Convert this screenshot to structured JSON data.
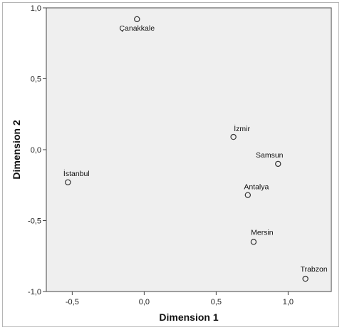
{
  "chart_data": {
    "type": "scatter",
    "xlabel": "Dimension 1",
    "ylabel": "Dimension 2",
    "xlim": [
      -0.68,
      1.3
    ],
    "ylim": [
      -1.0,
      1.0
    ],
    "xticks": [
      -0.5,
      0.0,
      0.5,
      1.0
    ],
    "yticks": [
      -1.0,
      -0.5,
      0.0,
      0.5,
      1.0
    ],
    "xtick_labels": [
      "-0,5",
      "0,0",
      "0,5",
      "1,0"
    ],
    "ytick_labels": [
      "-1,0",
      "-0,5",
      "0,0",
      "0,5",
      "1,0"
    ],
    "grid": false,
    "points": [
      {
        "label": "Çanakkale",
        "x": -0.05,
        "y": 0.92
      },
      {
        "label": "İzmir",
        "x": 0.62,
        "y": 0.09
      },
      {
        "label": "Samsun",
        "x": 0.93,
        "y": -0.1
      },
      {
        "label": "İstanbul",
        "x": -0.53,
        "y": -0.23
      },
      {
        "label": "Antalya",
        "x": 0.72,
        "y": -0.32
      },
      {
        "label": "Mersin",
        "x": 0.76,
        "y": -0.65
      },
      {
        "label": "Trabzon",
        "x": 1.12,
        "y": -0.91
      }
    ],
    "colors": {
      "plot_background": "#efefef",
      "marker_stroke": "#333333"
    }
  }
}
